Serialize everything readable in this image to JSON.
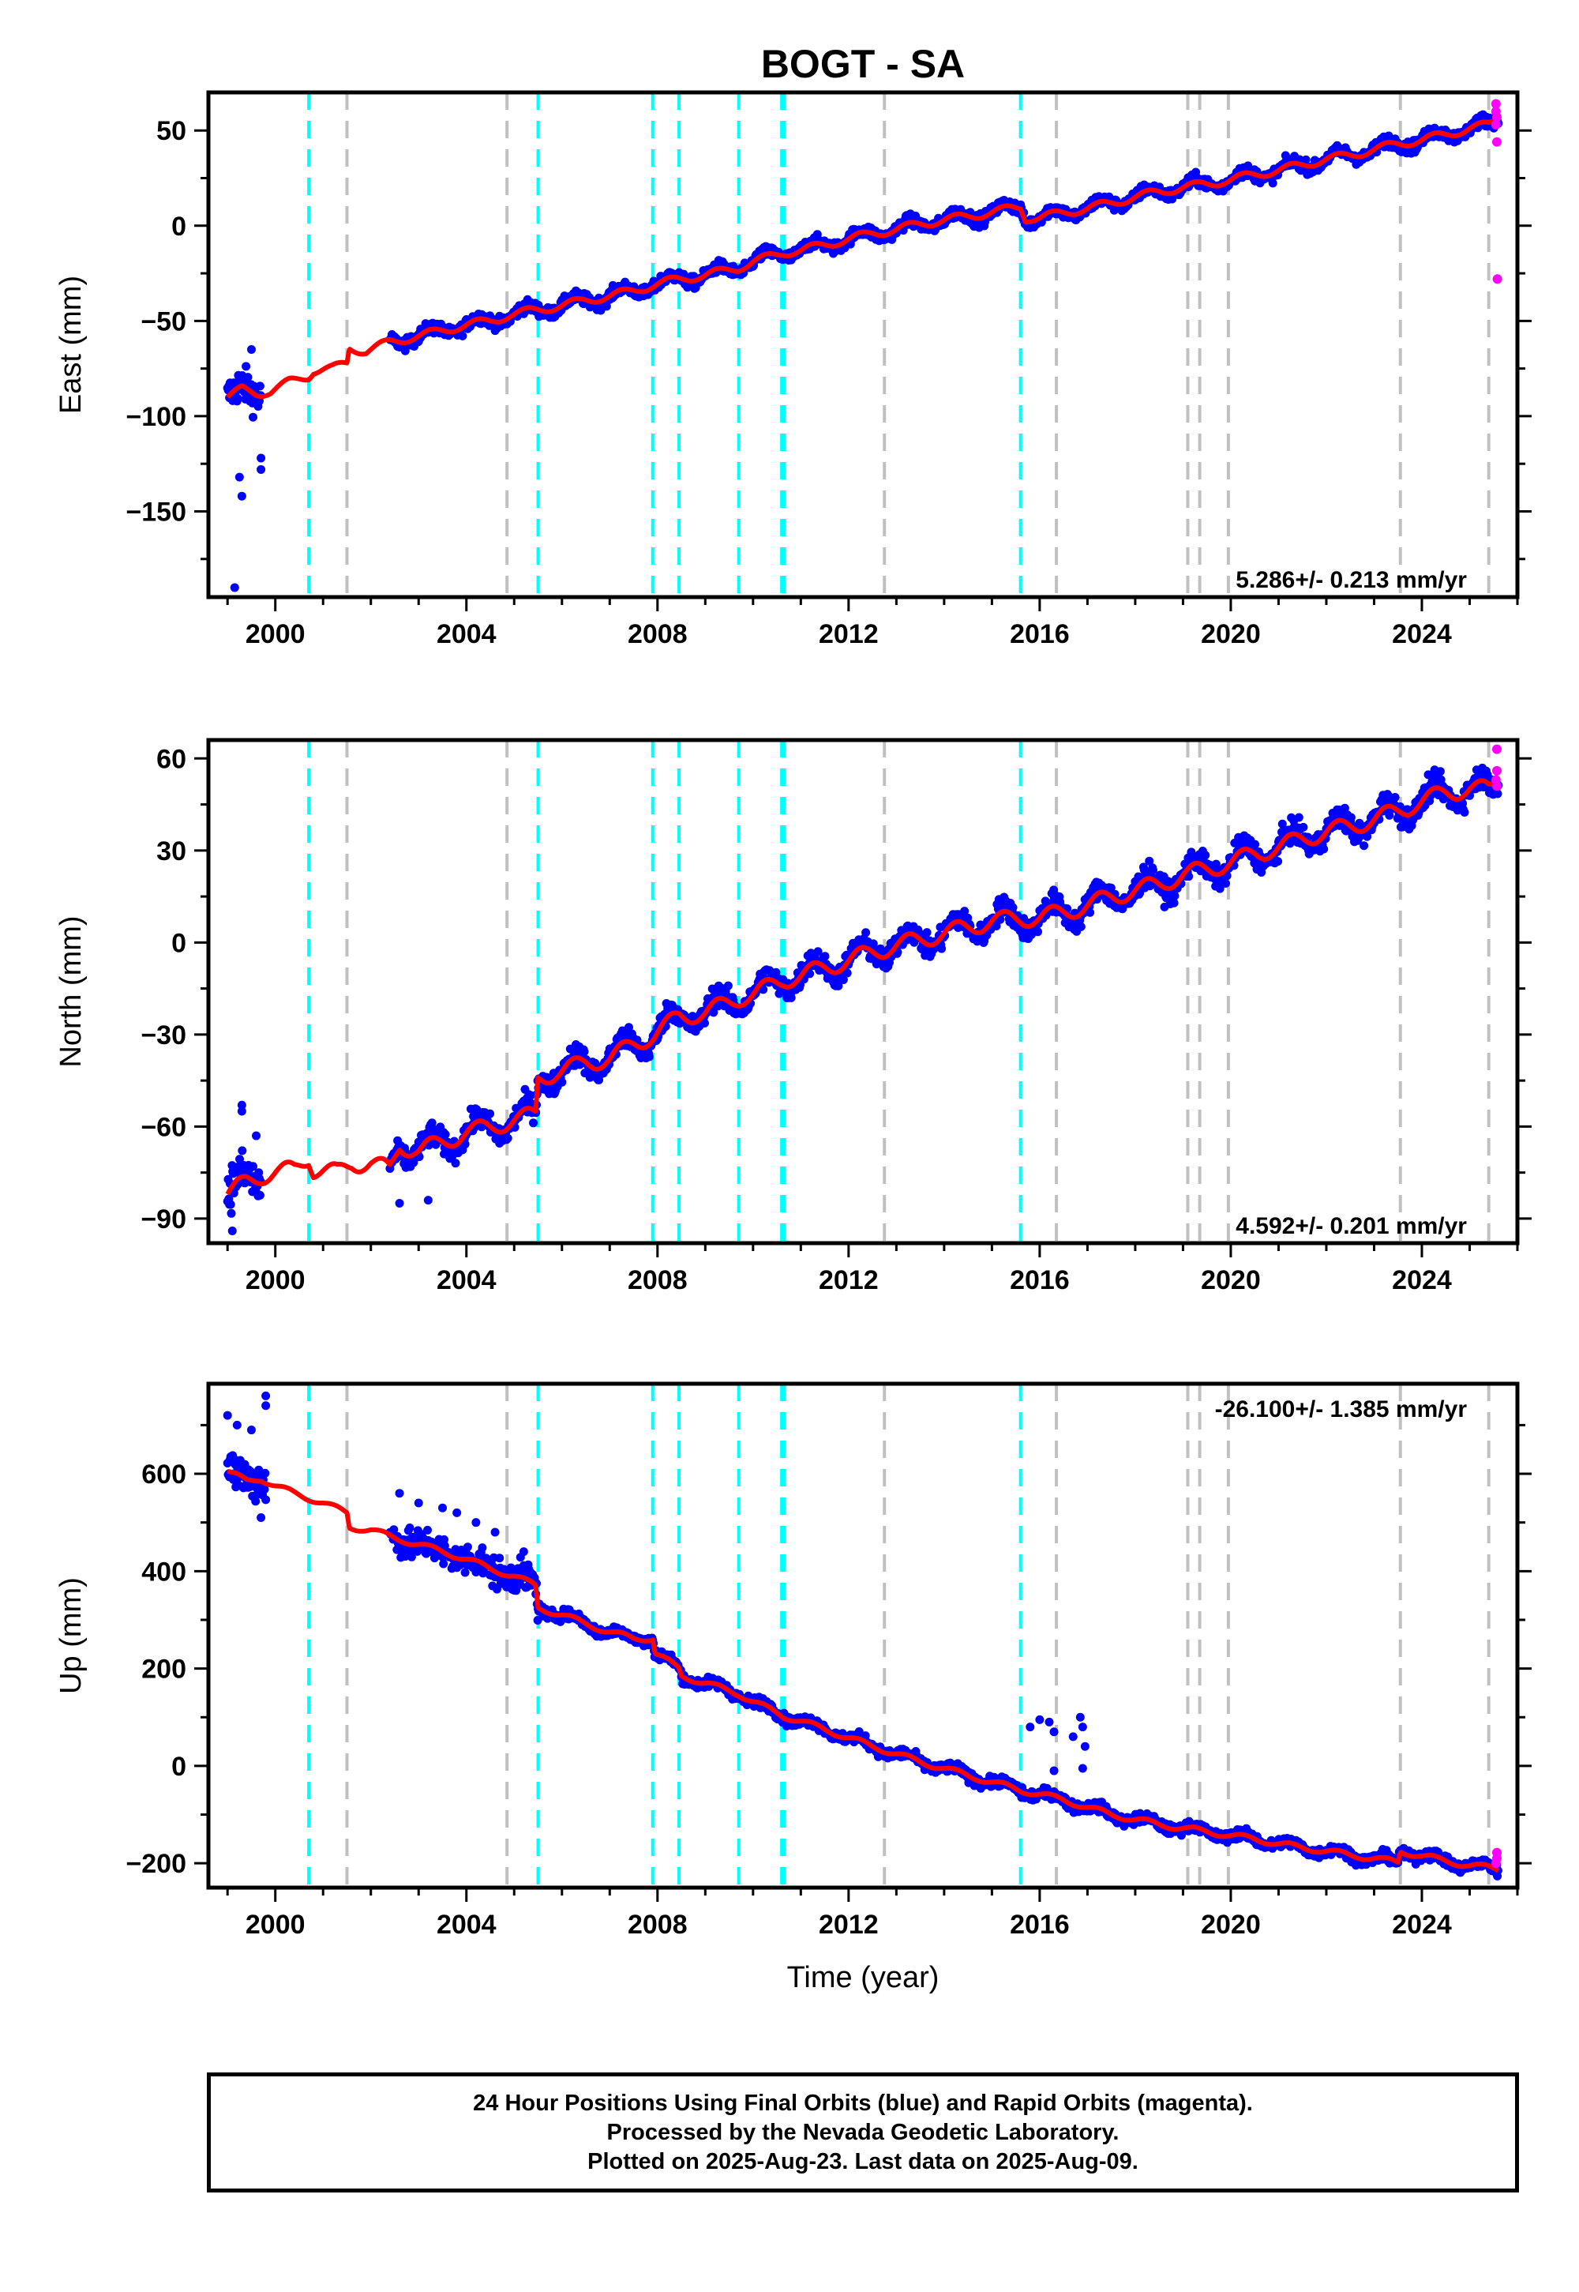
{
  "title": "BOGT - SA",
  "xlabel": "Time (year)",
  "footer": {
    "line1": "24 Hour Positions Using Final Orbits (blue) and Rapid Orbits (magenta).",
    "line2": "Processed by the Nevada Geodetic Laboratory.",
    "line3": "Plotted on 2025-Aug-23. Last data on 2025-Aug-09."
  },
  "colors": {
    "final": "#0000ff",
    "rapid": "#ff00ff",
    "model": "#ff0000",
    "equipment_change": "#00ffff",
    "earthquake": "#c0c0c0"
  },
  "chart_data": [
    {
      "type": "scatter",
      "ylabel": "East (mm)",
      "rate_label": "5.286+/- 0.213 mm/yr",
      "xlim": [
        1998.6,
        2026.0
      ],
      "ylim": [
        -195,
        70
      ],
      "xticks": [
        2000,
        2004,
        2008,
        2012,
        2016,
        2020,
        2024
      ],
      "yticks": [
        50,
        0,
        -50,
        -100,
        -150
      ],
      "yminor": [
        25,
        -25,
        -75,
        -125,
        -175
      ],
      "equipment_lines": [
        2000.7,
        2005.5,
        2007.9,
        2008.45,
        2009.7,
        2010.6,
        2010.65,
        2015.6
      ],
      "earthquake_lines": [
        2001.5,
        2004.85,
        2012.75,
        2016.35,
        2019.1,
        2019.35,
        2019.95,
        2023.55,
        2025.4
      ],
      "trend": [
        [
          1999.0,
          -90
        ],
        [
          1999.3,
          -86
        ],
        [
          1999.6,
          -88
        ],
        [
          1999.9,
          -87
        ],
        [
          2000.3,
          -82
        ],
        [
          2000.7,
          -79
        ],
        [
          2000.8,
          -76
        ],
        [
          2001.2,
          -75
        ],
        [
          2001.5,
          -72
        ],
        [
          2001.55,
          -64
        ],
        [
          2001.9,
          -66
        ],
        [
          2002.4,
          -61
        ],
        [
          2003.0,
          -58
        ],
        [
          2003.5,
          -55
        ],
        [
          2004.0,
          -52
        ],
        [
          2004.5,
          -50
        ],
        [
          2004.9,
          -47
        ],
        [
          2005.5,
          -44
        ],
        [
          2006.0,
          -42
        ],
        [
          2006.5,
          -39
        ],
        [
          2007.0,
          -37
        ],
        [
          2007.5,
          -34
        ],
        [
          2007.95,
          -31
        ],
        [
          2008.45,
          -28
        ],
        [
          2009.0,
          -26
        ],
        [
          2009.7,
          -22
        ],
        [
          2010.0,
          -19
        ],
        [
          2010.65,
          -14
        ],
        [
          2011.0,
          -13
        ],
        [
          2011.5,
          -10
        ],
        [
          2012.0,
          -7
        ],
        [
          2012.5,
          -4
        ],
        [
          2013.0,
          -2
        ],
        [
          2013.5,
          1
        ],
        [
          2014.0,
          3
        ],
        [
          2014.5,
          5
        ],
        [
          2015.0,
          7
        ],
        [
          2015.6,
          10
        ],
        [
          2015.7,
          4
        ],
        [
          2016.0,
          4
        ],
        [
          2016.5,
          7
        ],
        [
          2017.0,
          9
        ],
        [
          2017.5,
          12
        ],
        [
          2018.0,
          15
        ],
        [
          2018.5,
          18
        ],
        [
          2019.0,
          20
        ],
        [
          2019.5,
          22
        ],
        [
          2020.0,
          24
        ],
        [
          2020.5,
          27
        ],
        [
          2021.0,
          29
        ],
        [
          2021.5,
          32
        ],
        [
          2022.0,
          35
        ],
        [
          2022.5,
          37
        ],
        [
          2023.0,
          40
        ],
        [
          2023.5,
          43
        ],
        [
          2024.0,
          45
        ],
        [
          2024.5,
          48
        ],
        [
          2025.0,
          51
        ],
        [
          2025.4,
          53
        ],
        [
          2025.6,
          57
        ]
      ],
      "seasonal_amplitude": 3,
      "scatter_runs": [
        {
          "start": 1999.0,
          "end": 1999.7,
          "spread": 9
        },
        {
          "start": 2002.4,
          "end": 2025.6,
          "spread": 3
        }
      ],
      "outliers": [
        [
          1999.15,
          -190
        ],
        [
          1999.3,
          -142
        ],
        [
          1999.25,
          -132
        ],
        [
          1999.7,
          -128
        ],
        [
          1999.7,
          -122
        ],
        [
          1999.5,
          -65
        ]
      ],
      "rapid": [
        [
          2025.55,
          64
        ],
        [
          2025.55,
          60
        ],
        [
          2025.57,
          57
        ],
        [
          2025.55,
          53
        ],
        [
          2025.57,
          44
        ],
        [
          2025.58,
          -28
        ]
      ]
    },
    {
      "type": "scatter",
      "ylabel": "North (mm)",
      "rate_label": "4.592+/- 0.201 mm/yr",
      "xlim": [
        1998.6,
        2026.0
      ],
      "ylim": [
        -98,
        66
      ],
      "xticks": [
        2000,
        2004,
        2008,
        2012,
        2016,
        2020,
        2024
      ],
      "yticks": [
        60,
        30,
        0,
        -30,
        -60,
        -90
      ],
      "yminor": [
        45,
        15,
        -15,
        -45,
        -75
      ],
      "equipment_lines": [
        2000.7,
        2005.5,
        2007.9,
        2008.45,
        2009.7,
        2010.6,
        2010.65,
        2015.6
      ],
      "earthquake_lines": [
        2001.5,
        2004.85,
        2012.75,
        2016.35,
        2019.1,
        2019.35,
        2019.95,
        2023.55,
        2025.4
      ],
      "trend": [
        [
          1999.0,
          -82
        ],
        [
          1999.4,
          -78
        ],
        [
          1999.7,
          -76
        ],
        [
          2000.0,
          -75
        ],
        [
          2000.4,
          -74
        ],
        [
          2000.7,
          -70
        ],
        [
          2000.8,
          -74
        ],
        [
          2001.3,
          -75
        ],
        [
          2001.6,
          -72
        ],
        [
          2002.0,
          -72
        ],
        [
          2002.4,
          -74
        ],
        [
          2002.6,
          -66
        ],
        [
          2003.0,
          -68
        ],
        [
          2003.5,
          -65
        ],
        [
          2004.0,
          -62
        ],
        [
          2004.5,
          -60
        ],
        [
          2005.0,
          -58
        ],
        [
          2005.45,
          -56
        ],
        [
          2005.5,
          -44
        ],
        [
          2006.0,
          -42
        ],
        [
          2006.5,
          -39
        ],
        [
          2007.0,
          -38
        ],
        [
          2007.5,
          -33
        ],
        [
          2007.95,
          -30
        ],
        [
          2008.45,
          -24
        ],
        [
          2009.0,
          -23
        ],
        [
          2009.7,
          -18
        ],
        [
          2010.0,
          -17
        ],
        [
          2010.65,
          -12
        ],
        [
          2011.0,
          -11
        ],
        [
          2011.5,
          -8
        ],
        [
          2012.0,
          -6
        ],
        [
          2012.5,
          -3
        ],
        [
          2013.0,
          -1
        ],
        [
          2013.5,
          1
        ],
        [
          2014.0,
          3
        ],
        [
          2014.5,
          5
        ],
        [
          2015.0,
          7
        ],
        [
          2015.6,
          8
        ],
        [
          2016.0,
          8
        ],
        [
          2016.5,
          10
        ],
        [
          2017.0,
          12
        ],
        [
          2017.5,
          15
        ],
        [
          2018.0,
          17
        ],
        [
          2018.5,
          19
        ],
        [
          2019.0,
          22
        ],
        [
          2019.5,
          24
        ],
        [
          2020.0,
          26
        ],
        [
          2020.5,
          29
        ],
        [
          2021.0,
          31
        ],
        [
          2021.5,
          34
        ],
        [
          2022.0,
          36
        ],
        [
          2022.5,
          38
        ],
        [
          2023.0,
          40
        ],
        [
          2023.5,
          43
        ],
        [
          2024.0,
          46
        ],
        [
          2024.5,
          49
        ],
        [
          2025.0,
          50
        ],
        [
          2025.4,
          50
        ],
        [
          2025.6,
          53
        ]
      ],
      "seasonal_amplitude": 4,
      "scatter_runs": [
        {
          "start": 1999.0,
          "end": 1999.7,
          "spread": 7
        },
        {
          "start": 2002.4,
          "end": 2025.6,
          "spread": 3.5
        }
      ],
      "outliers": [
        [
          1999.3,
          -53
        ],
        [
          1999.3,
          -55
        ],
        [
          1999.1,
          -94
        ],
        [
          1999.6,
          -63
        ],
        [
          2002.6,
          -85
        ],
        [
          2003.2,
          -84
        ]
      ],
      "rapid": [
        [
          2025.57,
          63
        ],
        [
          2025.57,
          56
        ],
        [
          2025.55,
          53
        ],
        [
          2025.57,
          51
        ]
      ]
    },
    {
      "type": "scatter",
      "ylabel": "Up (mm)",
      "rate_label": "-26.100+/- 1.385 mm/yr",
      "xlim": [
        1998.6,
        2026.0
      ],
      "ylim": [
        -250,
        785
      ],
      "xticks": [
        2000,
        2004,
        2008,
        2012,
        2016,
        2020,
        2024
      ],
      "yticks": [
        600,
        400,
        200,
        0,
        -200
      ],
      "yminor": [
        700,
        500,
        300,
        100,
        -100
      ],
      "equipment_lines": [
        2000.7,
        2005.5,
        2007.9,
        2008.45,
        2009.7,
        2010.6,
        2010.65,
        2015.6
      ],
      "earthquake_lines": [
        2001.5,
        2004.85,
        2012.75,
        2016.35,
        2019.1,
        2019.35,
        2019.95,
        2023.55,
        2025.4
      ],
      "trend": [
        [
          1999.0,
          605
        ],
        [
          1999.4,
          585
        ],
        [
          1999.7,
          590
        ],
        [
          2000.0,
          575
        ],
        [
          2000.4,
          560
        ],
        [
          2000.7,
          550
        ],
        [
          2001.0,
          540
        ],
        [
          2001.5,
          520
        ],
        [
          2001.55,
          490
        ],
        [
          2002.0,
          485
        ],
        [
          2002.5,
          468
        ],
        [
          2003.0,
          455
        ],
        [
          2003.5,
          440
        ],
        [
          2004.0,
          425
        ],
        [
          2004.5,
          405
        ],
        [
          2005.0,
          390
        ],
        [
          2005.45,
          370
        ],
        [
          2005.5,
          325
        ],
        [
          2006.0,
          310
        ],
        [
          2006.5,
          292
        ],
        [
          2007.0,
          275
        ],
        [
          2007.5,
          262
        ],
        [
          2007.9,
          262
        ],
        [
          2007.95,
          232
        ],
        [
          2008.45,
          200
        ],
        [
          2008.5,
          185
        ],
        [
          2009.0,
          170
        ],
        [
          2009.7,
          148
        ],
        [
          2010.0,
          132
        ],
        [
          2010.65,
          102
        ],
        [
          2011.0,
          92
        ],
        [
          2011.5,
          75
        ],
        [
          2012.0,
          58
        ],
        [
          2012.5,
          40
        ],
        [
          2013.0,
          25
        ],
        [
          2013.5,
          8
        ],
        [
          2014.0,
          -5
        ],
        [
          2014.5,
          -20
        ],
        [
          2015.0,
          -33
        ],
        [
          2015.6,
          -50
        ],
        [
          2016.0,
          -58
        ],
        [
          2016.5,
          -70
        ],
        [
          2017.0,
          -85
        ],
        [
          2017.5,
          -100
        ],
        [
          2018.0,
          -110
        ],
        [
          2018.5,
          -120
        ],
        [
          2019.0,
          -128
        ],
        [
          2019.5,
          -135
        ],
        [
          2020.0,
          -143
        ],
        [
          2020.5,
          -150
        ],
        [
          2021.0,
          -160
        ],
        [
          2021.5,
          -168
        ],
        [
          2022.0,
          -175
        ],
        [
          2022.5,
          -183
        ],
        [
          2023.0,
          -190
        ],
        [
          2023.5,
          -198
        ],
        [
          2023.55,
          -175
        ],
        [
          2024.0,
          -185
        ],
        [
          2024.5,
          -195
        ],
        [
          2025.0,
          -205
        ],
        [
          2025.4,
          -208
        ],
        [
          2025.6,
          -212
        ]
      ],
      "seasonal_amplitude": 8,
      "scatter_runs": [
        {
          "start": 1999.0,
          "end": 1999.8,
          "spread": 40
        },
        {
          "start": 2002.4,
          "end": 2005.5,
          "spread": 30
        },
        {
          "start": 2005.5,
          "end": 2025.6,
          "spread": 10
        }
      ],
      "outliers": [
        [
          1999.0,
          720
        ],
        [
          1999.2,
          700
        ],
        [
          1999.5,
          690
        ],
        [
          1999.8,
          740
        ],
        [
          1999.8,
          760
        ],
        [
          1999.7,
          510
        ],
        [
          2002.6,
          560
        ],
        [
          2003.0,
          540
        ],
        [
          2003.5,
          530
        ],
        [
          2003.8,
          520
        ],
        [
          2004.2,
          500
        ],
        [
          2004.6,
          480
        ],
        [
          2005.2,
          440
        ],
        [
          2015.8,
          80
        ],
        [
          2016.0,
          95
        ],
        [
          2016.2,
          90
        ],
        [
          2016.3,
          70
        ],
        [
          2016.7,
          60
        ],
        [
          2016.85,
          100
        ],
        [
          2016.9,
          80
        ],
        [
          2016.95,
          40
        ],
        [
          2016.3,
          -10
        ],
        [
          2016.9,
          -5
        ]
      ],
      "rapid": [
        [
          2025.57,
          -178
        ],
        [
          2025.57,
          -190
        ],
        [
          2025.55,
          -200
        ]
      ]
    }
  ]
}
